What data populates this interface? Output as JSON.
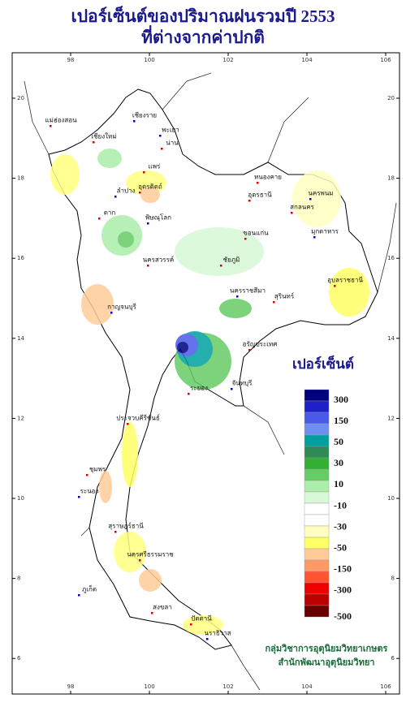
{
  "title": {
    "line1": "เปอร์เซ็นต์ของปริมาณฝนรวมปี  2553",
    "line2": "ที่ต่างจากค่าปกติ"
  },
  "axes": {
    "longitude_ticks": [
      98,
      100,
      102,
      104,
      106
    ],
    "latitude_ticks": [
      20,
      18,
      16,
      14,
      12,
      10,
      8,
      6
    ]
  },
  "provinces": [
    "เชียงราย",
    "แม่ฮ่องสอน",
    "เชียงใหม่",
    "พะเยา",
    "น่าน",
    "แพร่",
    "ลำปาง",
    "อุตรดิตถ์",
    "ตาก",
    "พิษณุโลก",
    "หนองคาย",
    "อุดรธานี",
    "นครพนม",
    "สกลนคร",
    "ขอนแก่น",
    "มุกดาหาร",
    "ชัยภูมิ",
    "นครสวรรค์",
    "นครราชสีมา",
    "อุบลราชธานี",
    "สุรินทร์",
    "กาญจนบุรี",
    "อรัญประเทศ",
    "ระยอง",
    "จันทบุรี",
    "ประจวบคีรีขันธ์",
    "ชุมพร",
    "ระนอง",
    "สุราษฎร์ธานี",
    "นครศรีธรรมราช",
    "ภูเก็ต",
    "สงขลา",
    "ปัตตานี",
    "นราธิวาส"
  ],
  "legend": {
    "title": "เปอร์เซ็นต์",
    "colors": [
      "#000080",
      "#2020c8",
      "#4a5ae8",
      "#6f8ff0",
      "#00a0a0",
      "#2e8b57",
      "#33b033",
      "#66cc66",
      "#aaeeaa",
      "#d8f8d8",
      "#ffffff",
      "#ffffff",
      "#ffffc0",
      "#ffff66",
      "#ffcc99",
      "#ff9966",
      "#ff5533",
      "#ee0000",
      "#bb0000",
      "#660000"
    ],
    "labels": [
      "300",
      "150",
      "50",
      "30",
      "10",
      "-10",
      "-30",
      "-50",
      "-150",
      "-300",
      "-500"
    ]
  },
  "credits": [
    "กลุ่มวิชาการอุตุนิยมวิทยาเกษตร",
    "สำนักพัฒนาอุตุนิยมวิทยา"
  ]
}
